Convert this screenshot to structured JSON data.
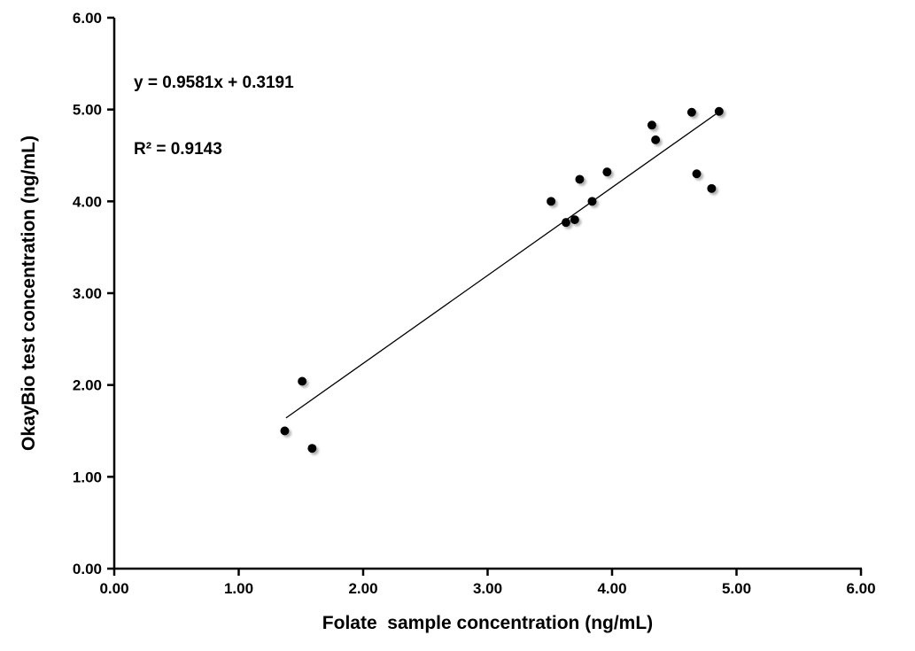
{
  "page": {
    "background": "#ffffff"
  },
  "chart_data": {
    "type": "scatter",
    "title": "",
    "xlabel": "Folate  sample concentration (ng/mL)",
    "ylabel": "OkayBio test concentration (ng/mL)",
    "xlim": [
      0,
      6
    ],
    "ylim": [
      0,
      6
    ],
    "xticks": [
      "0.00",
      "1.00",
      "2.00",
      "3.00",
      "4.00",
      "5.00",
      "6.00"
    ],
    "yticks": [
      "0.00",
      "1.00",
      "2.00",
      "3.00",
      "4.00",
      "5.00",
      "6.00"
    ],
    "grid": false,
    "legend": false,
    "axis_color": "#000000",
    "marker": {
      "shape": "circle",
      "color": "#000000",
      "radius": 5,
      "shadow_color": "#999999"
    },
    "points": [
      [
        1.37,
        1.5
      ],
      [
        1.51,
        2.04
      ],
      [
        1.59,
        1.31
      ],
      [
        3.51,
        4.0
      ],
      [
        3.63,
        3.77
      ],
      [
        3.7,
        3.8
      ],
      [
        3.74,
        4.24
      ],
      [
        3.84,
        4.0
      ],
      [
        3.96,
        4.32
      ],
      [
        4.32,
        4.83
      ],
      [
        4.35,
        4.67
      ],
      [
        4.64,
        4.97
      ],
      [
        4.68,
        4.3
      ],
      [
        4.8,
        4.14
      ],
      [
        4.86,
        4.98
      ]
    ],
    "trendline": {
      "slope": 0.9581,
      "intercept": 0.3191,
      "x_start": 1.38,
      "x_end": 4.86,
      "color": "#000000"
    },
    "annotation": {
      "equation": "y = 0.9581x + 0.3191",
      "r_squared": "R² = 0.9143"
    }
  }
}
